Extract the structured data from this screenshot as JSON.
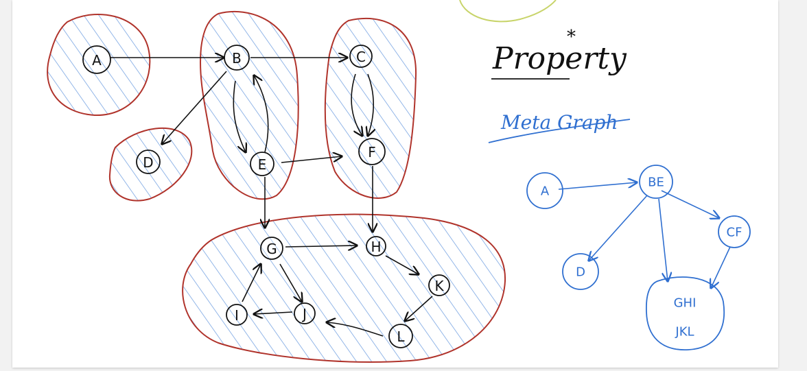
{
  "colors": {
    "ink": "#111111",
    "red": "#b0332b",
    "blue": "#2f6fd0",
    "hatch": "#4a86d8",
    "yellow_green": "#c8d46a"
  },
  "title": "Property",
  "title_mark": "*",
  "subtitle": "Meta Graph",
  "graph": {
    "nodes": {
      "A": "A",
      "B": "B",
      "C": "C",
      "D": "D",
      "E": "E",
      "F": "F",
      "G": "G",
      "H": "H",
      "I": "I",
      "J": "J",
      "K": "K",
      "L": "L"
    }
  },
  "meta_graph": {
    "nodes": {
      "A": "A",
      "BE": "BE",
      "CF": "CF",
      "D": "D",
      "GHIJKL_line1": "GHI",
      "GHIJKL_line2": "JKL"
    }
  }
}
